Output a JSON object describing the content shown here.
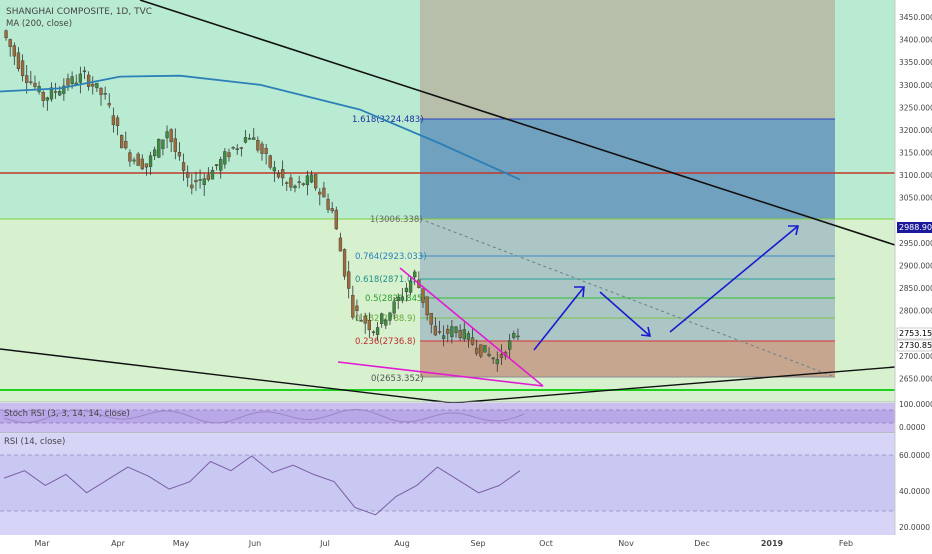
{
  "header": {
    "title": "SHANGHAI COMPOSITE, 1D, TVC",
    "ma_label": "MA (200, close)"
  },
  "panels": {
    "stoch_label": "Stoch RSI (3, 3, 14, 14, close)",
    "rsi_label": "RSI (14, close)"
  },
  "colors": {
    "zone_green": "#b9ebd3",
    "zone_lightgreen": "#d7f1cf",
    "fib_box": "#4a90c8",
    "fib_box_bottom": "#c98f7a",
    "ma_line": "#2d7fb8",
    "resistance": "#c0392b",
    "support": "#1fd11f",
    "wedge": "#e01bd3",
    "trend": "#000000",
    "projection": "#1a1ad1",
    "rsi_bg": "#c9c8f2",
    "rsi_line": "#7b5ea7",
    "stoch_bg": "#b9a8e8",
    "up_candle": "#3d8c40",
    "down_candle": "#9c6d3a"
  },
  "chart_data": [
    {
      "type": "candlestick",
      "title": "SHANGHAI COMPOSITE, 1D, TVC",
      "x_tick_labels": [
        "Mar",
        "Apr",
        "May",
        "Jun",
        "Jul",
        "Aug",
        "Sep",
        "Oct",
        "Nov",
        "Dec",
        "2019",
        "Feb"
      ],
      "y_tick_labels": [
        "3450.000",
        "3400.000",
        "3350.000",
        "3300.000",
        "3250.000",
        "3200.000",
        "3150.000",
        "3100.000",
        "3050.000",
        "2950.000",
        "2900.000",
        "2850.000",
        "2800.000",
        "2700.000",
        "2650.000"
      ],
      "ylim": [
        2620,
        3480
      ],
      "price_labels": {
        "upper": "2988.905",
        "last_a": "2753.159",
        "last_b": "2730.850"
      },
      "fib_levels": [
        {
          "label": "1.618(3224.483)",
          "value": 3224.483
        },
        {
          "label": "1(3006.338)",
          "value": 3006.338
        },
        {
          "label": "0.764(2923.033)",
          "value": 2923.033
        },
        {
          "label": "0.618(2871.0)",
          "value": 2871.0
        },
        {
          "label": "0.5(2829.845)",
          "value": 2829.845
        },
        {
          "label": "0.382(2788.9)",
          "value": 2788.9
        },
        {
          "label": "0.236(2736.8)",
          "value": 2736.8
        },
        {
          "label": "0(2653.352)",
          "value": 2653.352
        }
      ],
      "horizontal_levels": {
        "resistance": 3103,
        "support": 2632
      },
      "ma200": [
        [
          "Mar",
          3290
        ],
        [
          "Apr",
          3320
        ],
        [
          "May",
          3315
        ],
        [
          "Jun",
          3290
        ],
        [
          "Jul",
          3230
        ],
        [
          "Aug",
          3170
        ],
        [
          "Sep",
          3100
        ]
      ],
      "candles_weekly_ohlc": [
        [
          3420,
          3440,
          3290,
          3330
        ],
        [
          3330,
          3360,
          3250,
          3270
        ],
        [
          3270,
          3320,
          3220,
          3300
        ],
        [
          3300,
          3340,
          3280,
          3320
        ],
        [
          3320,
          3340,
          3250,
          3270
        ],
        [
          3270,
          3290,
          3120,
          3150
        ],
        [
          3150,
          3190,
          3090,
          3120
        ],
        [
          3120,
          3220,
          3100,
          3200
        ],
        [
          3200,
          3210,
          3060,
          3080
        ],
        [
          3080,
          3120,
          3050,
          3100
        ],
        [
          3100,
          3160,
          3080,
          3150
        ],
        [
          3150,
          3200,
          3130,
          3190
        ],
        [
          3190,
          3210,
          3100,
          3120
        ],
        [
          3120,
          3140,
          3060,
          3070
        ],
        [
          3070,
          3110,
          3040,
          3090
        ],
        [
          3090,
          3100,
          3000,
          3020
        ],
        [
          3020,
          3030,
          2780,
          2800
        ],
        [
          2800,
          2840,
          2730,
          2760
        ],
        [
          2760,
          2830,
          2700,
          2810
        ],
        [
          2810,
          2900,
          2780,
          2880
        ],
        [
          2880,
          2900,
          2720,
          2740
        ],
        [
          2740,
          2790,
          2680,
          2760
        ],
        [
          2760,
          2790,
          2700,
          2720
        ],
        [
          2720,
          2750,
          2650,
          2690
        ],
        [
          2690,
          2760,
          2660,
          2750
        ]
      ],
      "projection_path": [
        [
          "Sep",
          2720
        ],
        [
          "Sep",
          2860
        ],
        [
          "Oct",
          2840
        ],
        [
          "Oct",
          2740
        ],
        [
          "Nov",
          2810
        ],
        [
          "Dec",
          2990
        ]
      ]
    },
    {
      "type": "line",
      "title": "Stoch RSI (3, 3, 14, 14, close)",
      "y_tick_labels": [
        "100.0000",
        "0.0000"
      ],
      "ylim": [
        0,
        100
      ]
    },
    {
      "type": "line",
      "title": "RSI (14, close)",
      "y_tick_labels": [
        "60.0000",
        "40.0000",
        "20.0000"
      ],
      "ylim": [
        15,
        70
      ],
      "values": [
        46,
        50,
        42,
        48,
        38,
        45,
        52,
        47,
        40,
        44,
        55,
        50,
        58,
        49,
        53,
        48,
        44,
        30,
        26,
        36,
        42,
        52,
        45,
        38,
        42,
        50
      ]
    }
  ]
}
